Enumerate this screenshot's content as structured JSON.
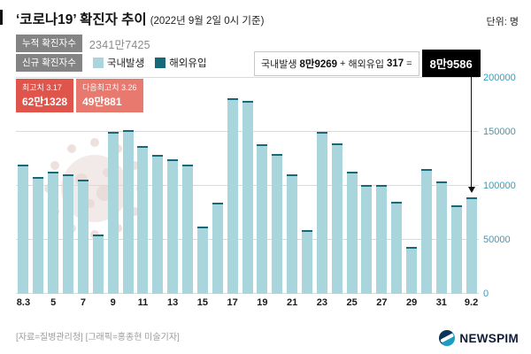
{
  "header": {
    "title": "‘코로나19’ 확진자 추이",
    "subtitle": "(2022년 9월 2일 0시 기준)",
    "unit": "단위: 명"
  },
  "summary": {
    "cumulative_label": "누적 확진자수",
    "cumulative_value": "2341만7425",
    "new_label": "신규 확진자수"
  },
  "legend": {
    "domestic": "국내발생",
    "imported": "해외유입"
  },
  "annotation": {
    "domestic_label": "국내발생",
    "domestic_value": "8만9269",
    "plus": "+",
    "imported_label": "해외유입",
    "imported_value": "317",
    "equals": "=",
    "total": "8만9586"
  },
  "peaks": [
    {
      "label": "최고치 3.17",
      "value": "62만1328"
    },
    {
      "label": "다음최고치 3.26",
      "value": "49만881"
    }
  ],
  "footer": {
    "source": "[자료=질병관리청] [그래픽=홍종현 미술기자]",
    "logo": "NEWSPIM"
  },
  "colors": {
    "domestic_bar": "#a9d6dd",
    "imported_bar": "#17697a",
    "axis_label": "#2f9fbe",
    "peak_badge_1": "#e0554b",
    "peak_badge_2": "#e8796f",
    "total_badge": "#000000"
  },
  "chart_data": {
    "type": "bar",
    "title": "‘코로나19’ 확진자 추이 (2022년 9월 2일 0시 기준)",
    "ylabel": "명",
    "xlabel": "",
    "grid": true,
    "legend_position": "top",
    "legend": [
      "국내발생",
      "해외유입"
    ],
    "ylim": [
      0,
      200000
    ],
    "yticks": [
      0,
      50000,
      100000,
      150000,
      200000
    ],
    "categories": [
      "8.3",
      "8.4",
      "8.5",
      "8.6",
      "8.7",
      "8.8",
      "8.9",
      "8.10",
      "8.11",
      "8.12",
      "8.13",
      "8.14",
      "8.15",
      "8.16",
      "8.17",
      "8.18",
      "8.19",
      "8.20",
      "8.21",
      "8.22",
      "8.23",
      "8.24",
      "8.25",
      "8.26",
      "8.27",
      "8.28",
      "8.29",
      "8.30",
      "8.31",
      "9.1",
      "9.2"
    ],
    "values": [
      119922,
      107894,
      112901,
      110944,
      105507,
      55292,
      149897,
      151792,
      137241,
      128714,
      124592,
      119603,
      62078,
      84128,
      180803,
      178574,
      138812,
      129411,
      110924,
      59046,
      150258,
      139339,
      113371,
      101140,
      100835,
      85295,
      43142,
      115638,
      103961,
      81573,
      89586
    ],
    "x_tick_labels": [
      "8.3",
      "5",
      "7",
      "9",
      "11",
      "13",
      "15",
      "17",
      "19",
      "21",
      "23",
      "25",
      "27",
      "29",
      "31",
      "9.2"
    ],
    "x_tick_every": 2,
    "last_bar_breakdown": {
      "domestic": 89269,
      "imported": 317,
      "total": 89586
    },
    "annotated_peaks": [
      {
        "date": "3.17",
        "value": 621328
      },
      {
        "date": "3.26",
        "value": 490881
      }
    ],
    "cumulative_total": 23417425
  }
}
